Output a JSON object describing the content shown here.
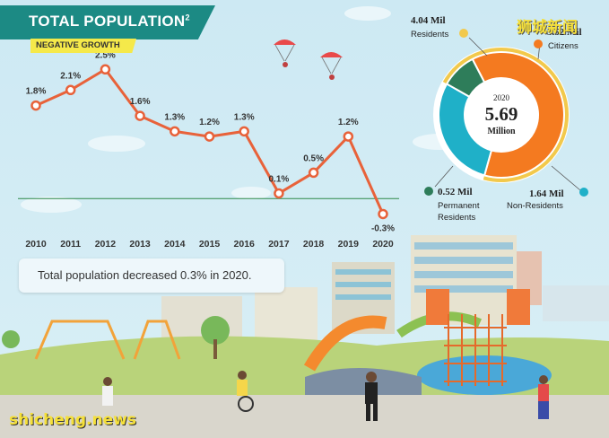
{
  "header": {
    "title": "TOTAL POPULATION",
    "title_note": "2",
    "subtitle": "NEGATIVE GROWTH"
  },
  "note": "Total population decreased 0.3% in 2020.",
  "watermark": {
    "cn": "狮城新闻",
    "en": "shicheng.news"
  },
  "colors": {
    "line": "#e8623a",
    "teal": "#1c8a84",
    "citizens": "#f47a20",
    "permanent_residents": "#2e7d5a",
    "non_residents": "#1fb0c8",
    "residents_ring": "#f2c94c"
  },
  "chart_data": [
    {
      "type": "line",
      "x": [
        "2010",
        "2011",
        "2012",
        "2013",
        "2014",
        "2015",
        "2016",
        "2017",
        "2018",
        "2019",
        "2020"
      ],
      "values": [
        1.8,
        2.1,
        2.5,
        1.6,
        1.3,
        1.2,
        1.3,
        0.1,
        0.5,
        1.2,
        -0.3
      ],
      "data_labels": [
        "1.8%",
        "2.1%",
        "2.5%",
        "1.6%",
        "1.3%",
        "1.2%",
        "1.3%",
        "0.1%",
        "0.5%",
        "1.2%",
        "-0.3%"
      ],
      "ylim": [
        -0.5,
        2.8
      ],
      "baseline": 0,
      "grid": false
    },
    {
      "type": "pie",
      "center": {
        "year": "2020",
        "value": "5.69",
        "unit": "Million"
      },
      "slices": [
        {
          "label": "Citizens",
          "value": 3.52,
          "display": "3.52 Mil"
        },
        {
          "label": "Permanent Residents",
          "value": 0.52,
          "display": "0.52 Mil"
        },
        {
          "label": "Non-Residents",
          "value": 1.64,
          "display": "1.64 Mil"
        }
      ],
      "outer_ring": {
        "label": "Residents",
        "value": 4.04,
        "display": "4.04 Mil"
      }
    }
  ]
}
